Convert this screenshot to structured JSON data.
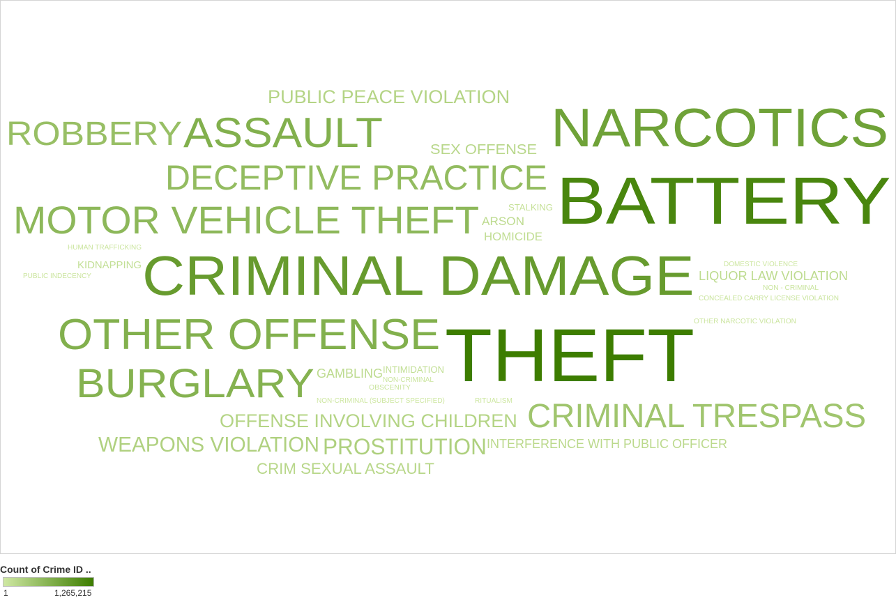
{
  "chart_data": {
    "type": "word_cloud",
    "measure": "Count of Crime ID ..",
    "color_scale": {
      "min_value": 1,
      "max_value": 1265215,
      "min_label": "1",
      "max_label": "1,265,215",
      "min_color": "#cfe8a3",
      "max_color": "#3d7d00"
    },
    "words": [
      {
        "text": "THEFT",
        "weight": 1.0
      },
      {
        "text": "BATTERY",
        "weight": 0.88
      },
      {
        "text": "CRIMINAL DAMAGE",
        "weight": 0.62
      },
      {
        "text": "NARCOTICS",
        "weight": 0.55
      },
      {
        "text": "OTHER OFFENSE",
        "weight": 0.4
      },
      {
        "text": "ASSAULT",
        "weight": 0.4
      },
      {
        "text": "BURGLARY",
        "weight": 0.38
      },
      {
        "text": "MOTOR VEHICLE THEFT",
        "weight": 0.32
      },
      {
        "text": "DECEPTIVE PRACTICE",
        "weight": 0.28
      },
      {
        "text": "ROBBERY",
        "weight": 0.25
      },
      {
        "text": "CRIMINAL TRESPASS",
        "weight": 0.2
      },
      {
        "text": "PROSTITUTION",
        "weight": 0.12
      },
      {
        "text": "WEAPONS VIOLATION",
        "weight": 0.11
      },
      {
        "text": "OFFENSE INVOLVING CHILDREN",
        "weight": 0.09
      },
      {
        "text": "PUBLIC PEACE VIOLATION",
        "weight": 0.09
      },
      {
        "text": "CRIM SEXUAL ASSAULT",
        "weight": 0.07
      },
      {
        "text": "SEX OFFENSE",
        "weight": 0.07
      },
      {
        "text": "INTERFERENCE WITH PUBLIC OFFICER",
        "weight": 0.06
      },
      {
        "text": "GAMBLING",
        "weight": 0.05
      },
      {
        "text": "LIQUOR LAW VIOLATION",
        "weight": 0.05
      },
      {
        "text": "ARSON",
        "weight": 0.05
      },
      {
        "text": "HOMICIDE",
        "weight": 0.04
      },
      {
        "text": "KIDNAPPING",
        "weight": 0.03
      },
      {
        "text": "INTIMIDATION",
        "weight": 0.03
      },
      {
        "text": "STALKING",
        "weight": 0.02
      },
      {
        "text": "OBSCENITY",
        "weight": 0.01
      },
      {
        "text": "CONCEALED CARRY LICENSE VIOLATION",
        "weight": 0.01
      },
      {
        "text": "NON - CRIMINAL",
        "weight": 0.01
      },
      {
        "text": "PUBLIC INDECENCY",
        "weight": 0.005
      },
      {
        "text": "OTHER NARCOTIC VIOLATION",
        "weight": 0.005
      },
      {
        "text": "HUMAN TRAFFICKING",
        "weight": 0.005
      },
      {
        "text": "NON-CRIMINAL",
        "weight": 0.005
      },
      {
        "text": "RITUALISM",
        "weight": 0.002
      },
      {
        "text": "NON-CRIMINAL (SUBJECT SPECIFIED)",
        "weight": 0.001
      },
      {
        "text": "DOMESTIC VIOLENCE",
        "weight": 0.001
      }
    ]
  },
  "legend": {
    "title": "Count of Crime ID ..",
    "min_label": "1",
    "max_label": "1,265,215"
  }
}
